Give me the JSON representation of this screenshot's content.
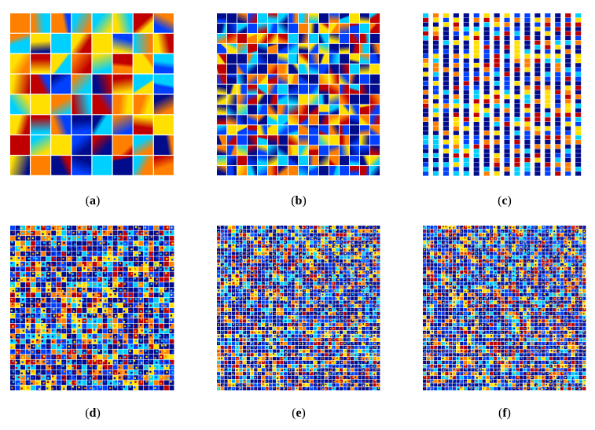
{
  "figure": {
    "panels": [
      {
        "id": "a",
        "letter": "a",
        "grid": {
          "cols": 8,
          "rows": 8
        },
        "style": "smooth"
      },
      {
        "id": "b",
        "letter": "b",
        "grid": {
          "cols": 16,
          "rows": 16
        },
        "style": "medium"
      },
      {
        "id": "c",
        "letter": "c",
        "grid": {
          "cols": 16,
          "rows": 36
        },
        "style": "strips"
      },
      {
        "id": "d",
        "letter": "d",
        "grid": {
          "cols": 32,
          "rows": 32
        },
        "style": "fine"
      },
      {
        "id": "e",
        "letter": "e",
        "grid": {
          "cols": 44,
          "rows": 44
        },
        "style": "noisy"
      },
      {
        "id": "f",
        "letter": "f",
        "grid": {
          "cols": 44,
          "rows": 44
        },
        "style": "noisy"
      }
    ],
    "colors": {
      "dark_blue": "#000c8c",
      "blue": "#0040ff",
      "cyan": "#00d0ff",
      "yellow": "#ffe000",
      "orange": "#ff8000",
      "red": "#c00000",
      "separator": "#ffffff"
    }
  }
}
